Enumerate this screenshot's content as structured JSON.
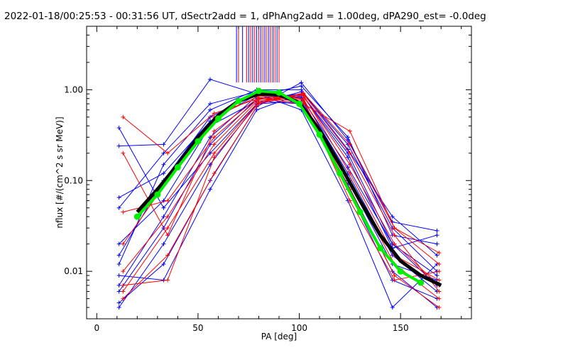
{
  "chart_data": {
    "type": "line",
    "title": "2022-01-18/00:25:53 - 00:31:56 UT, dSectr2add = 1, dPhAng2add = 1.00deg, dPA290_est=  -0.0deg",
    "xlabel": "PA [deg]",
    "ylabel": "nflux [#/(cm^2 s sr MeV)]",
    "xlim": [
      -5,
      185
    ],
    "ylim": [
      0.003,
      5.0
    ],
    "yscale": "log",
    "x_ticks": [
      0,
      50,
      100,
      150
    ],
    "x_tick_labels": [
      "0",
      "50",
      "100",
      "150"
    ],
    "y_ticks": [
      0.01,
      0.1,
      1.0
    ],
    "y_tick_labels": [
      "0.01",
      "0.10",
      "1.00"
    ],
    "grid": false,
    "colors": {
      "red": "#ff0000",
      "blue": "#0000ff",
      "green": "#00ee00",
      "black": "#000000"
    },
    "series": [
      {
        "color": "blue",
        "x": [
          11,
          33,
          56,
          79,
          101,
          124,
          146,
          168
        ],
        "y": [
          0.006,
          0.03,
          0.25,
          0.8,
          0.9,
          0.2,
          0.02,
          0.007
        ]
      },
      {
        "color": "blue",
        "x": [
          11,
          33,
          56,
          79,
          101,
          124,
          146,
          168
        ],
        "y": [
          0.015,
          0.1,
          0.5,
          0.9,
          0.85,
          0.12,
          0.015,
          0.006
        ]
      },
      {
        "color": "blue",
        "x": [
          11,
          33,
          56,
          79,
          101,
          124,
          146,
          168
        ],
        "y": [
          0.004,
          0.02,
          0.15,
          0.7,
          0.95,
          0.25,
          0.03,
          0.01
        ]
      },
      {
        "color": "blue",
        "x": [
          11,
          33,
          56,
          79,
          101,
          124,
          146,
          168
        ],
        "y": [
          0.05,
          0.2,
          0.7,
          0.95,
          0.8,
          0.08,
          0.008,
          0.005
        ]
      },
      {
        "color": "blue",
        "x": [
          11,
          33,
          56,
          79,
          101,
          124,
          146,
          168
        ],
        "y": [
          0.007,
          0.04,
          0.3,
          0.85,
          1.1,
          0.3,
          0.025,
          0.02
        ]
      },
      {
        "color": "blue",
        "x": [
          11,
          33,
          56,
          79,
          101,
          124,
          146,
          168
        ],
        "y": [
          0.02,
          0.06,
          0.4,
          0.75,
          0.7,
          0.1,
          0.012,
          0.008
        ]
      },
      {
        "color": "blue",
        "x": [
          11,
          33,
          56,
          79,
          101,
          124,
          146,
          168
        ],
        "y": [
          0.24,
          0.25,
          1.3,
          0.9,
          0.6,
          0.06,
          0.004,
          0.012
        ]
      },
      {
        "color": "blue",
        "x": [
          11,
          33,
          56,
          79,
          101,
          124,
          146,
          168
        ],
        "y": [
          0.009,
          0.008,
          0.08,
          0.6,
          0.9,
          0.18,
          0.018,
          0.025
        ]
      },
      {
        "color": "blue",
        "x": [
          11,
          33,
          56,
          79,
          101,
          124,
          146,
          168
        ],
        "y": [
          0.012,
          0.15,
          0.6,
          1.0,
          1.0,
          0.22,
          0.04,
          0.015
        ]
      },
      {
        "color": "blue",
        "x": [
          11,
          33,
          56,
          79,
          101,
          124,
          146,
          168
        ],
        "y": [
          0.38,
          0.05,
          0.2,
          0.7,
          0.75,
          0.09,
          0.01,
          0.004
        ]
      },
      {
        "color": "blue",
        "x": [
          11,
          33,
          56,
          79,
          101,
          124,
          146,
          168
        ],
        "y": [
          0.0045,
          0.012,
          0.1,
          0.65,
          1.2,
          0.28,
          0.035,
          0.028
        ]
      },
      {
        "color": "blue",
        "x": [
          11,
          33,
          56,
          79,
          101,
          124,
          146,
          168
        ],
        "y": [
          0.065,
          0.12,
          0.45,
          0.88,
          0.82,
          0.14,
          0.02,
          0.009
        ]
      },
      {
        "color": "red",
        "x": [
          13,
          35,
          58,
          80,
          102,
          125,
          147,
          169
        ],
        "y": [
          0.5,
          0.2,
          0.55,
          0.8,
          0.7,
          0.35,
          0.03,
          0.016
        ]
      },
      {
        "color": "red",
        "x": [
          13,
          35,
          58,
          80,
          102,
          125,
          147,
          169
        ],
        "y": [
          0.006,
          0.03,
          0.2,
          0.75,
          0.85,
          0.15,
          0.02,
          0.007
        ]
      },
      {
        "color": "red",
        "x": [
          13,
          35,
          58,
          80,
          102,
          125,
          147,
          169
        ],
        "y": [
          0.02,
          0.1,
          0.5,
          0.85,
          0.8,
          0.1,
          0.012,
          0.005
        ]
      },
      {
        "color": "red",
        "x": [
          13,
          35,
          58,
          80,
          102,
          125,
          147,
          169
        ],
        "y": [
          0.005,
          0.015,
          0.12,
          0.7,
          0.9,
          0.2,
          0.025,
          0.006
        ]
      },
      {
        "color": "red",
        "x": [
          13,
          35,
          58,
          80,
          102,
          125,
          147,
          169
        ],
        "y": [
          0.045,
          0.06,
          0.3,
          0.8,
          0.75,
          0.08,
          0.009,
          0.004
        ]
      },
      {
        "color": "red",
        "x": [
          13,
          35,
          58,
          80,
          102,
          125,
          147,
          169
        ],
        "y": [
          0.01,
          0.04,
          0.25,
          0.78,
          0.88,
          0.12,
          0.015,
          0.008
        ]
      },
      {
        "color": "red",
        "x": [
          13,
          35,
          58,
          80,
          102,
          125,
          147,
          169
        ],
        "y": [
          0.2,
          0.025,
          0.35,
          0.82,
          0.78,
          0.06,
          0.008,
          0.01
        ]
      },
      {
        "color": "red",
        "x": [
          13,
          35,
          58,
          80,
          102,
          125,
          147,
          169
        ],
        "y": [
          0.007,
          0.008,
          0.18,
          0.72,
          0.92,
          0.25,
          0.03,
          0.012
        ]
      },
      {
        "color": "black",
        "x": [
          20,
          30,
          40,
          50,
          60,
          70,
          80,
          90,
          100,
          110,
          120,
          130,
          140,
          150,
          160,
          170
        ],
        "y": [
          0.045,
          0.08,
          0.15,
          0.3,
          0.52,
          0.75,
          0.9,
          0.88,
          0.72,
          0.36,
          0.15,
          0.06,
          0.025,
          0.013,
          0.009,
          0.007
        ]
      },
      {
        "color": "green",
        "x": [
          20,
          30,
          40,
          50,
          60,
          70,
          80,
          90,
          100,
          110,
          120,
          130,
          140,
          150,
          160
        ],
        "y": [
          0.04,
          0.07,
          0.14,
          0.27,
          0.48,
          0.75,
          0.97,
          0.93,
          0.7,
          0.32,
          0.12,
          0.045,
          0.018,
          0.01,
          0.0075
        ]
      }
    ],
    "vertical_lines": {
      "colors": [
        "blue",
        "red"
      ],
      "x": [
        69,
        70,
        72,
        74,
        75,
        76,
        77,
        78,
        79,
        80,
        81,
        82,
        83,
        84,
        85,
        86,
        87,
        88,
        89,
        90
      ],
      "y_range": [
        1.2,
        5.0
      ]
    }
  }
}
